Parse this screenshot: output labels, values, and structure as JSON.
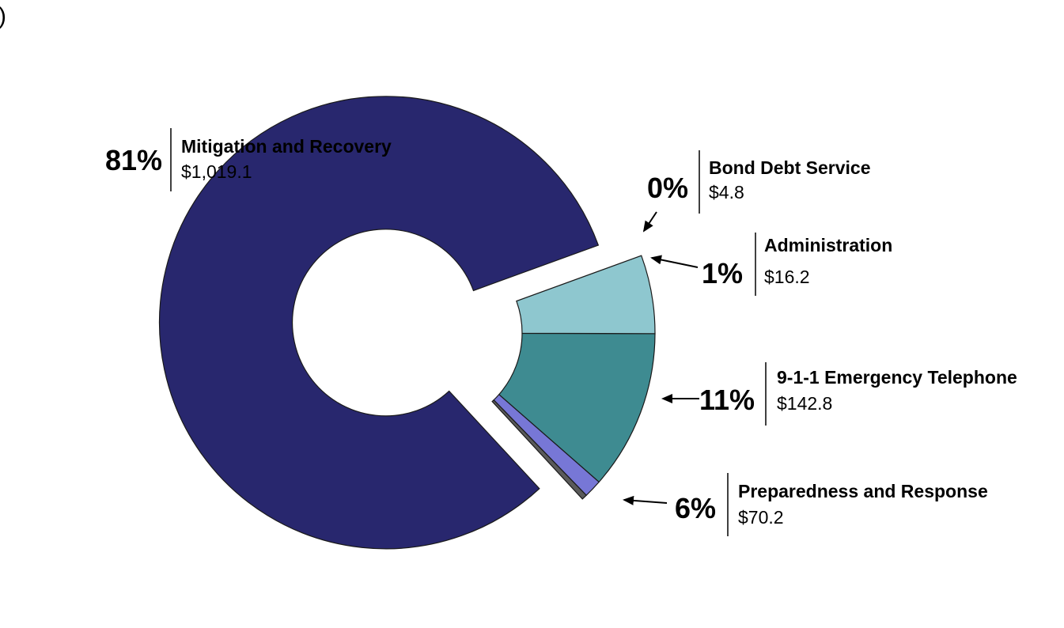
{
  "chart_data": {
    "type": "pie",
    "donut": true,
    "partial_title": ")",
    "slices": [
      {
        "label": "Mitigation and Recovery",
        "pct": "81%",
        "amount": "$1,019.1",
        "value": 1019.1,
        "color": "#28276e",
        "exploded": true
      },
      {
        "label": "Bond Debt Service",
        "pct": "0%",
        "amount": "$4.8",
        "value": 4.8,
        "color": "#5a5a5a",
        "exploded": false
      },
      {
        "label": "Administration",
        "pct": "1%",
        "amount": "$16.2",
        "value": 16.2,
        "color": "#7777d6",
        "exploded": false
      },
      {
        "label": "9-1-1 Emergency Telephone",
        "pct": "11%",
        "amount": "$142.8",
        "value": 142.8,
        "color": "#3e8b91",
        "exploded": false
      },
      {
        "label": "Preparedness and Response",
        "pct": "6%",
        "amount": "$70.2",
        "value": 70.2,
        "color": "#8ec7cf",
        "exploded": false
      }
    ]
  }
}
